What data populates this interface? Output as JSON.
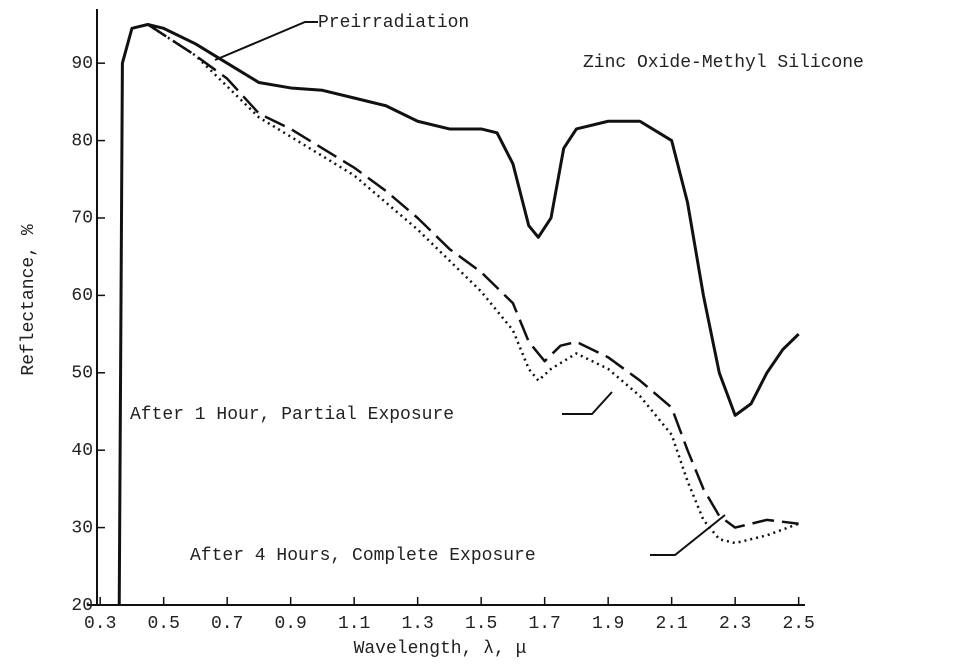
{
  "chart_data": {
    "type": "line",
    "title": "Zinc Oxide-Methyl Silicone",
    "x_label": "Wavelength,  λ,  μ",
    "y_label": "Reflectance, %",
    "xlim": [
      0.29,
      2.52
    ],
    "ylim": [
      20,
      97
    ],
    "xticks": [
      0.3,
      0.5,
      0.7,
      0.9,
      1.1,
      1.3,
      1.5,
      1.7,
      1.9,
      2.1,
      2.3,
      2.5
    ],
    "yticks": [
      20,
      30,
      40,
      50,
      60,
      70,
      80,
      90
    ],
    "grid": false,
    "series": [
      {
        "name": "Preirradiation",
        "color": "#111",
        "style": "solid",
        "x": [
          0.36,
          0.37,
          0.4,
          0.45,
          0.5,
          0.6,
          0.7,
          0.8,
          0.9,
          1.0,
          1.1,
          1.2,
          1.3,
          1.4,
          1.5,
          1.55,
          1.6,
          1.65,
          1.68,
          1.72,
          1.76,
          1.8,
          1.9,
          2.0,
          2.1,
          2.15,
          2.2,
          2.25,
          2.3,
          2.35,
          2.4,
          2.45,
          2.5
        ],
        "values": [
          20,
          90,
          94.5,
          95,
          94.5,
          92.5,
          90,
          87.5,
          86.8,
          86.5,
          85.5,
          84.5,
          82.5,
          81.5,
          81.5,
          81,
          77,
          69,
          67.5,
          70,
          79,
          81.5,
          82.5,
          82.5,
          80,
          72,
          60,
          50,
          44.5,
          46,
          50,
          53,
          55
        ]
      },
      {
        "name": "After 1 Hour, Partial Exposure",
        "color": "#111",
        "style": "dashed",
        "x": [
          0.45,
          0.6,
          0.7,
          0.8,
          0.9,
          1.0,
          1.1,
          1.2,
          1.3,
          1.4,
          1.5,
          1.6,
          1.65,
          1.7,
          1.75,
          1.8,
          1.9,
          2.0,
          2.1,
          2.15,
          2.2,
          2.25,
          2.3,
          2.4,
          2.5
        ],
        "values": [
          95,
          91,
          88,
          83.5,
          81.5,
          79,
          76.5,
          73.5,
          70,
          66,
          63,
          59,
          54,
          51.5,
          53.5,
          54,
          52,
          49,
          45.5,
          40,
          35,
          31.5,
          30,
          31,
          30.5
        ]
      },
      {
        "name": "After 4 Hours, Complete Exposure",
        "color": "#111",
        "style": "dotted",
        "x": [
          0.45,
          0.6,
          0.7,
          0.8,
          0.9,
          1.0,
          1.1,
          1.2,
          1.3,
          1.4,
          1.5,
          1.6,
          1.65,
          1.68,
          1.72,
          1.8,
          1.9,
          2.0,
          2.1,
          2.15,
          2.2,
          2.25,
          2.3,
          2.4,
          2.5
        ],
        "values": [
          95,
          91,
          87,
          83,
          80.5,
          78,
          75.5,
          72,
          68.5,
          64.5,
          60.5,
          55.5,
          50.5,
          49,
          50.5,
          52.5,
          50.5,
          47,
          42,
          36,
          31,
          28.5,
          28,
          29,
          30.5
        ]
      }
    ]
  }
}
